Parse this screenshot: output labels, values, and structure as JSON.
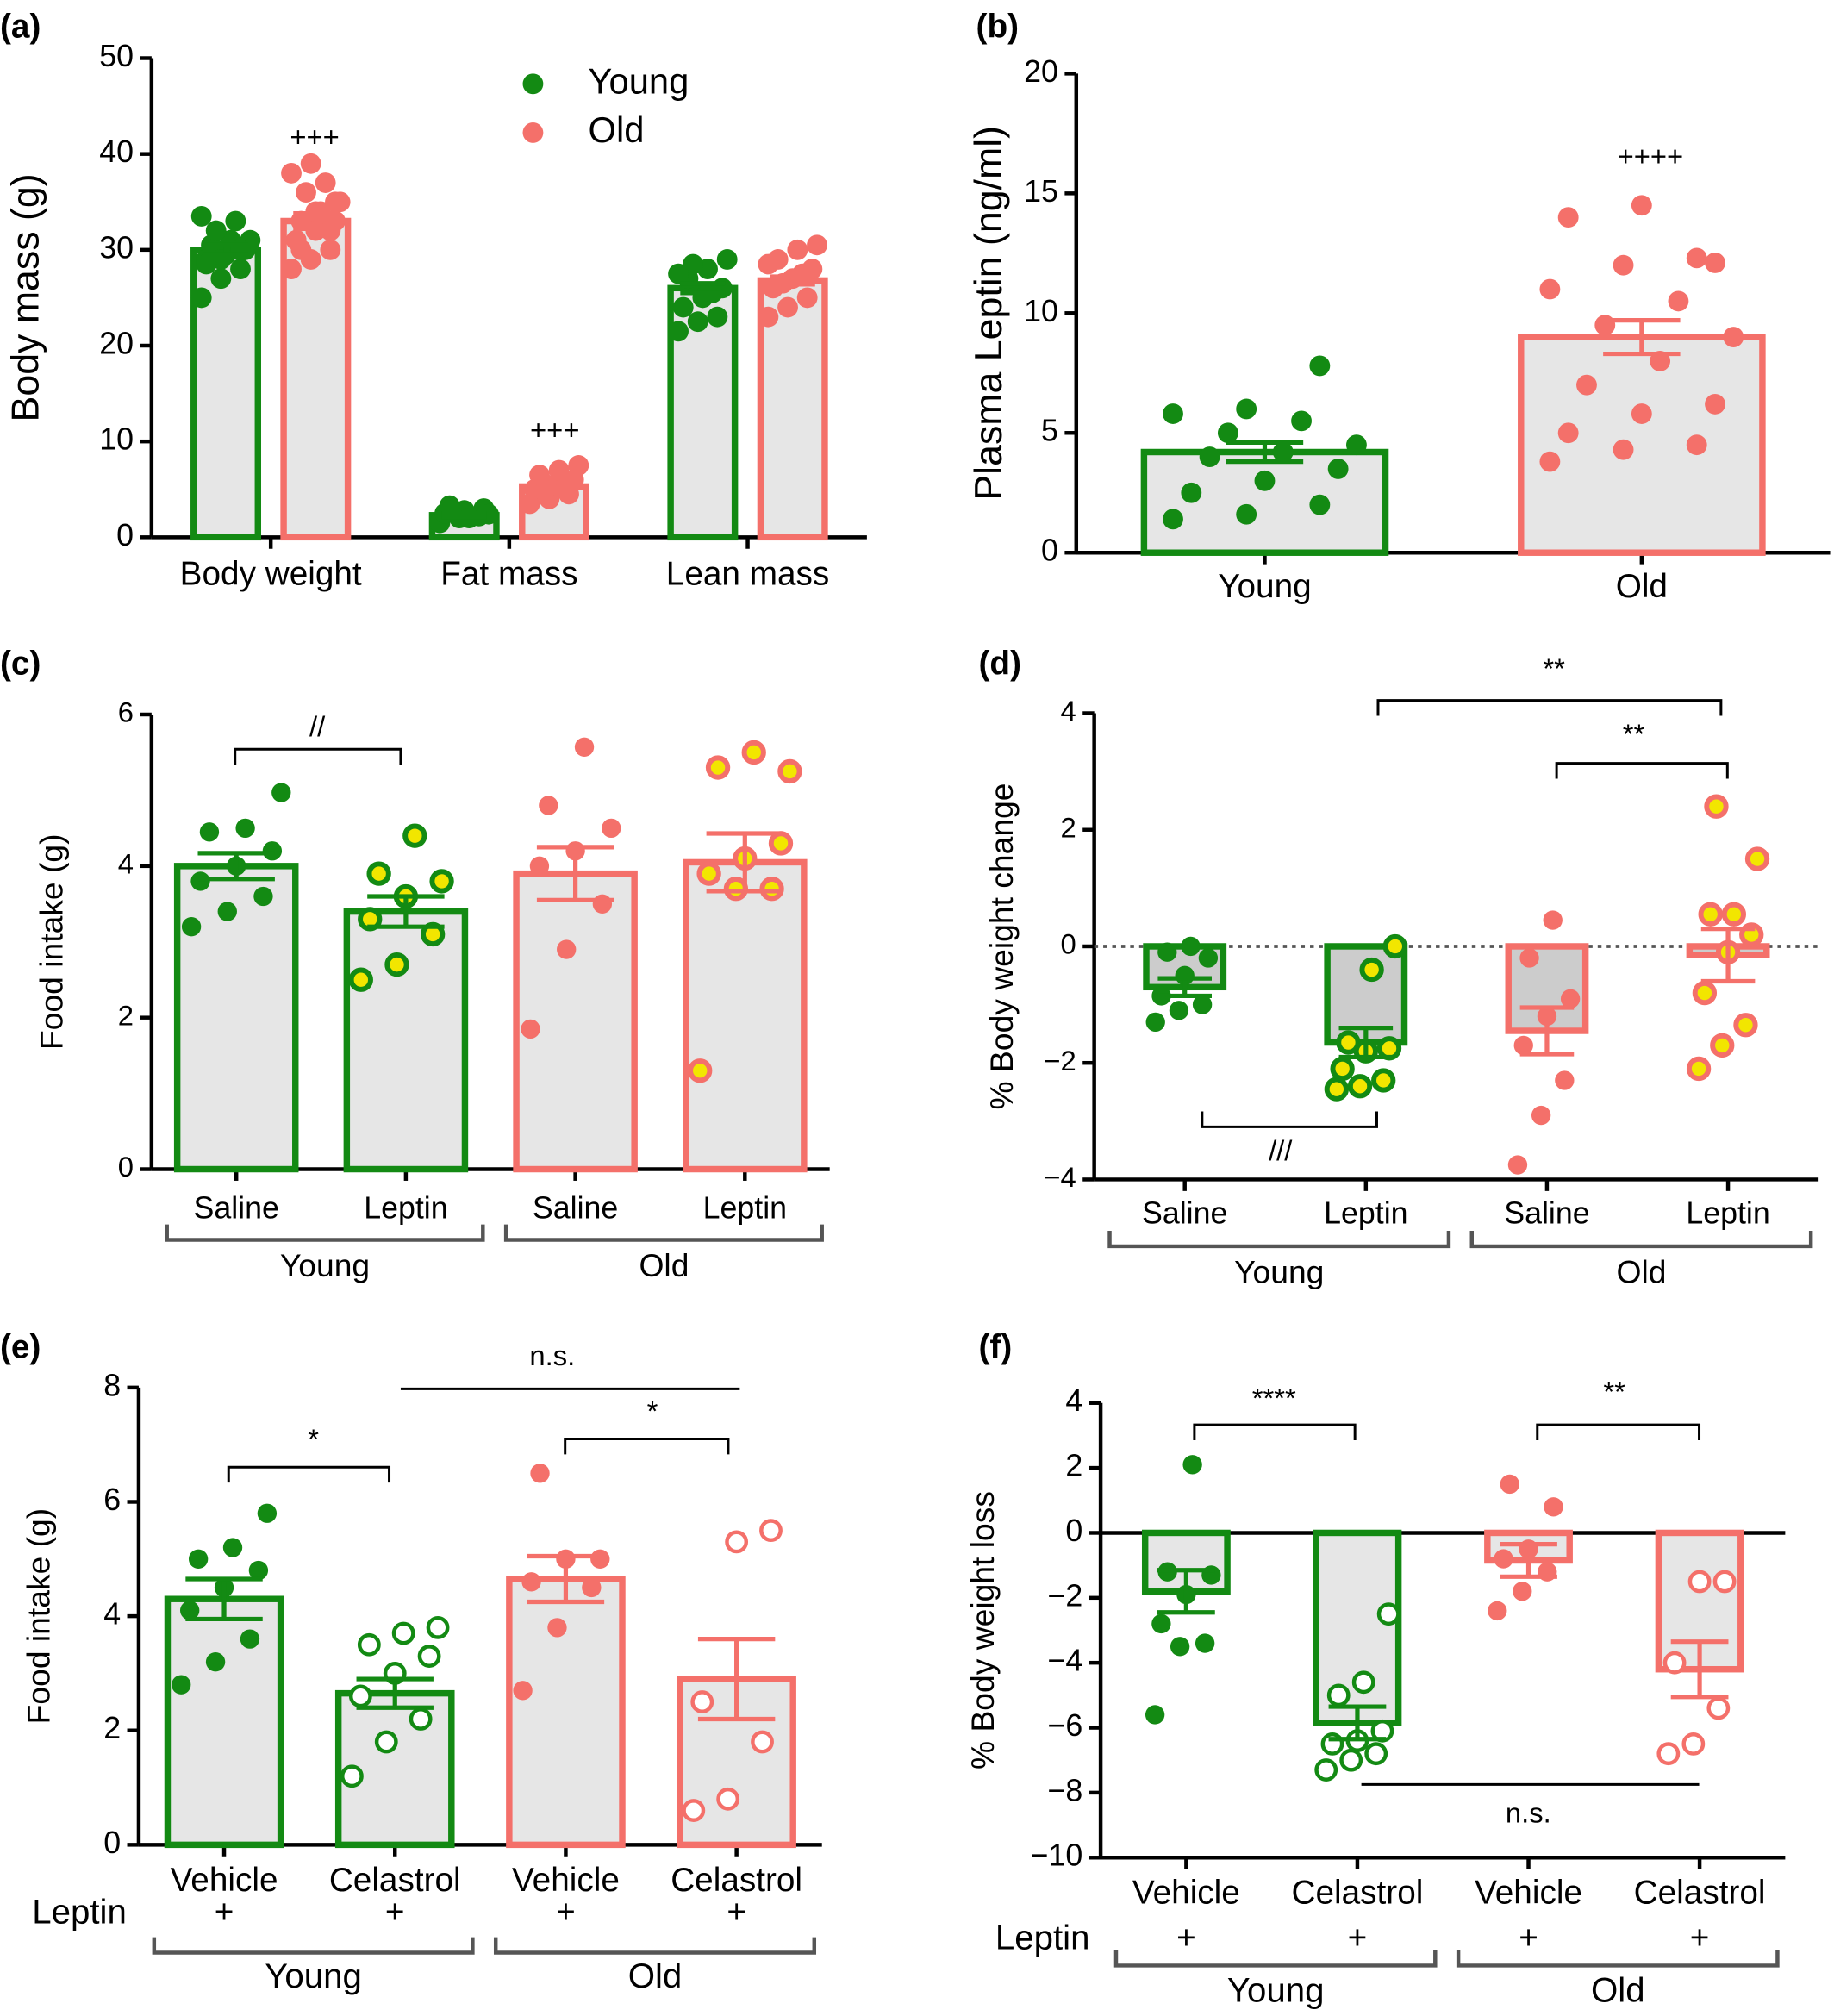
{
  "chart_data": [
    {
      "type": "grouped_bar",
      "panel": "(a)",
      "ylabel": "Body mass (g)",
      "ylim": [
        0,
        50
      ],
      "yticks": [
        0,
        10,
        20,
        30,
        40,
        50
      ],
      "categories": [
        "Body weight",
        "Fat mass",
        "Lean mass"
      ],
      "bar_fill": "#e6e6e6",
      "series": [
        {
          "name": "Young",
          "color": "#138a13",
          "values": [
            30,
            2.3,
            26
          ],
          "errors": [
            0.5,
            0.2,
            0.5
          ],
          "points": [
            [
              25,
              27,
              28,
              29,
              29.5,
              30,
              30.5,
              31,
              31,
              32,
              33,
              33.5,
              29,
              30,
              28.5
            ],
            [
              1.5,
              2,
              2.2,
              2.5,
              2.8,
              3,
              3.3,
              2,
              2.4
            ],
            [
              21.5,
              22.5,
              23,
              24,
              25,
              26,
              27,
              28,
              29,
              28.5,
              25.5,
              27.5
            ]
          ]
        },
        {
          "name": "Old",
          "color": "#f4706a",
          "values": [
            33,
            5.3,
            26.8
          ],
          "errors": [
            0.8,
            0.4,
            0.4
          ],
          "points": [
            [
              28,
              29,
              30,
              31,
              32,
              33,
              33,
              34,
              35,
              36,
              37,
              38,
              39,
              32,
              31,
              34,
              35,
              30
            ],
            [
              3.5,
              4,
              4.5,
              5,
              5.5,
              6,
              6.5,
              7,
              7.5,
              4.8,
              5.2
            ],
            [
              23,
              24,
              25,
              26,
              27,
              28,
              29,
              30,
              30.5,
              26.5,
              27.5,
              28.5
            ]
          ]
        }
      ],
      "annotations": [
        "+++",
        "+++"
      ]
    },
    {
      "type": "bar",
      "panel": "(b)",
      "ylabel": "Plasma Leptin (ng/ml)",
      "ylim": [
        0,
        20
      ],
      "yticks": [
        0,
        5,
        10,
        15,
        20
      ],
      "categories": [
        "Young",
        "Old"
      ],
      "values": [
        4.2,
        9.0
      ],
      "errors": [
        0.4,
        0.7
      ],
      "colors": [
        "#138a13",
        "#f4706a"
      ],
      "bar_fill": "#e6e6e6",
      "point_styles": [
        "filled",
        "filled"
      ],
      "points": [
        [
          1.4,
          1.6,
          2.0,
          2.5,
          3.0,
          3.5,
          4.0,
          4.2,
          4.5,
          5.0,
          5.5,
          5.8,
          6.0,
          7.8
        ],
        [
          3.8,
          4.3,
          4.5,
          5.0,
          5.8,
          6.2,
          7.0,
          8.0,
          9.0,
          9.5,
          10.5,
          11.0,
          12.0,
          12.3,
          14.0,
          14.5,
          12.1
        ]
      ],
      "annotations": [
        "++++"
      ]
    },
    {
      "type": "bar",
      "panel": "(c)",
      "ylabel": "Food intake (g)",
      "ylim": [
        0,
        6
      ],
      "yticks": [
        0,
        2,
        4,
        6
      ],
      "categories": [
        "Saline",
        "Leptin",
        "Saline",
        "Leptin"
      ],
      "groups": [
        "Young",
        "Old"
      ],
      "values": [
        4.0,
        3.4,
        3.9,
        4.05
      ],
      "errors": [
        0.17,
        0.2,
        0.35,
        0.38
      ],
      "colors": [
        "#138a13",
        "#138a13",
        "#f4706a",
        "#f4706a"
      ],
      "bar_fill": "#e6e6e6",
      "highlight_color": "#f2e600",
      "point_styles": [
        "filled",
        "highlight",
        "filled",
        "highlight"
      ],
      "points": [
        [
          3.2,
          3.4,
          3.6,
          3.8,
          4.0,
          4.2,
          4.45,
          4.5,
          4.97
        ],
        [
          2.5,
          2.7,
          3.1,
          3.3,
          3.6,
          3.8,
          3.9,
          4.4
        ],
        [
          1.85,
          2.9,
          3.5,
          4.0,
          4.2,
          4.5,
          4.8,
          5.57
        ],
        [
          1.3,
          3.7,
          3.7,
          3.9,
          4.1,
          4.3,
          5.3,
          5.5,
          5.25
        ]
      ],
      "annotations": [
        "//"
      ]
    },
    {
      "type": "bar",
      "panel": "(d)",
      "ylabel": "% Body weight change",
      "ylim": [
        -4,
        4
      ],
      "yticks": [
        {
          "value": -4,
          "label": "−4"
        },
        {
          "value": -2,
          "label": "−2"
        },
        0,
        2,
        4
      ],
      "categories": [
        "Saline",
        "Leptin",
        "Saline",
        "Leptin"
      ],
      "groups": [
        "Young",
        "Old"
      ],
      "values": [
        -0.7,
        -1.65,
        -1.45,
        -0.15
      ],
      "errors": [
        0.15,
        0.25,
        0.4,
        0.45
      ],
      "colors": [
        "#138a13",
        "#138a13",
        "#f4706a",
        "#f4706a"
      ],
      "bar_fill": "#cccccc",
      "highlight_color": "#f2e600",
      "zero_line": "dotted",
      "point_styles": [
        "filled",
        "highlight",
        "filled",
        "highlight"
      ],
      "points": [
        [
          -1.3,
          -1.1,
          -1.0,
          -0.85,
          -0.5,
          -0.2,
          -0.1,
          0
        ],
        [
          -2.45,
          -2.4,
          -2.3,
          -2.1,
          -1.8,
          -1.75,
          -1.65,
          -0.4,
          0
        ],
        [
          -3.75,
          -2.9,
          -2.3,
          -1.7,
          -1.2,
          -0.9,
          -0.2,
          0.45
        ],
        [
          -2.1,
          -1.7,
          -1.35,
          -0.8,
          -0.1,
          0.2,
          0.55,
          0.55,
          1.5,
          2.4
        ]
      ],
      "annotations": [
        "**",
        "**",
        "///"
      ]
    },
    {
      "type": "bar",
      "panel": "(e)",
      "ylabel": "Food intake (g)",
      "ylim": [
        0,
        8
      ],
      "yticks": [
        0,
        2,
        4,
        6,
        8
      ],
      "categories": [
        "Vehicle",
        "Celastrol",
        "Vehicle",
        "Celastrol"
      ],
      "groups": [
        "Young",
        "Old"
      ],
      "row_label": "Leptin",
      "row_marks": [
        "+",
        "+",
        "+",
        "+"
      ],
      "values": [
        4.3,
        2.65,
        4.65,
        2.9
      ],
      "errors": [
        0.35,
        0.25,
        0.4,
        0.7
      ],
      "colors": [
        "#138a13",
        "#138a13",
        "#f4706a",
        "#f4706a"
      ],
      "bar_fill": "#e6e6e6",
      "point_styles": [
        "filled",
        "hollow",
        "filled",
        "hollow"
      ],
      "points": [
        [
          2.8,
          3.2,
          3.6,
          4.1,
          4.5,
          4.8,
          5.0,
          5.2,
          5.8
        ],
        [
          1.2,
          1.8,
          2.2,
          2.6,
          3.0,
          3.3,
          3.5,
          3.7,
          3.8
        ],
        [
          2.7,
          3.8,
          4.5,
          4.6,
          5.0,
          5.0,
          6.5
        ],
        [
          0.6,
          0.8,
          1.8,
          2.5,
          5.3,
          5.5
        ]
      ],
      "annotations": [
        "*",
        "*",
        "n.s."
      ]
    },
    {
      "type": "bar",
      "panel": "(f)",
      "ylabel": "% Body weight loss",
      "ylim": [
        -10,
        4
      ],
      "yticks": [
        {
          "value": -10,
          "label": "−10"
        },
        {
          "value": -8,
          "label": "−8"
        },
        {
          "value": -6,
          "label": "−6"
        },
        {
          "value": -4,
          "label": "−4"
        },
        {
          "value": -2,
          "label": "−2"
        },
        0,
        2,
        4
      ],
      "categories": [
        "Vehicle",
        "Celastrol",
        "Vehicle",
        "Celastrol"
      ],
      "groups": [
        "Young",
        "Old"
      ],
      "row_label": "Leptin",
      "row_marks": [
        "+",
        "+",
        "+",
        "+"
      ],
      "values": [
        -1.8,
        -5.85,
        -0.85,
        -4.2
      ],
      "errors": [
        0.65,
        0.5,
        0.5,
        0.85
      ],
      "colors": [
        "#138a13",
        "#138a13",
        "#f4706a",
        "#f4706a"
      ],
      "bar_fill": "#e6e6e6",
      "zero_line": "solid",
      "point_styles": [
        "filled",
        "hollow",
        "filled",
        "hollow"
      ],
      "points": [
        [
          -5.6,
          -3.5,
          -3.4,
          -2.8,
          -1.9,
          -1.3,
          -1.2,
          2.1
        ],
        [
          -7.3,
          -7.0,
          -6.8,
          -6.5,
          -6.4,
          -6.1,
          -5.0,
          -4.6,
          -2.5
        ],
        [
          -2.4,
          -1.8,
          -1.2,
          -0.8,
          -0.5,
          0.8,
          1.5
        ],
        [
          -6.8,
          -6.5,
          -5.4,
          -4.0,
          -1.5,
          -1.5
        ]
      ],
      "annotations": [
        "****",
        "**",
        "n.s."
      ]
    }
  ]
}
